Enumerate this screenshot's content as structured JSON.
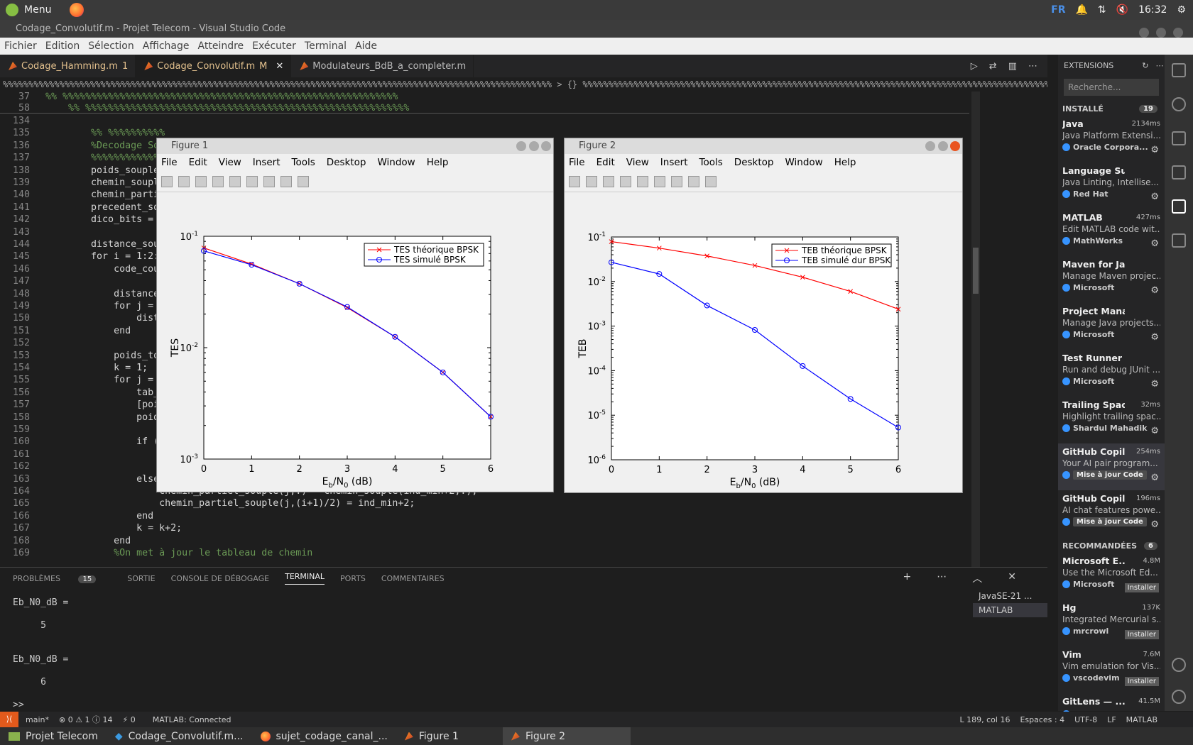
{
  "os": {
    "menu_label": "Menu",
    "kbd_layout": "FR",
    "clock": "16:32"
  },
  "window": {
    "title": "Codage_Convolutif.m - Projet Telecom - Visual Studio Code"
  },
  "menubar": [
    "Fichier",
    "Edition",
    "Sélection",
    "Affichage",
    "Atteindre",
    "Exécuter",
    "Terminal",
    "Aide"
  ],
  "tabs": [
    {
      "label": "Codage_Hamming.m",
      "badge": "1"
    },
    {
      "label": "Codage_Convolutif.m",
      "badge": "M"
    },
    {
      "label": "Modulateurs_BdB_a_completer.m",
      "badge": ""
    }
  ],
  "breadcrumb": "%%%%%%%%%%%%%%%%%%%%%%%%%%%%%%%%%%%%%%%%%%%%%%%%%%%%%%%%%%%%%%%%%%%%%%%%%%%%%%%%%%%%%%%%%%%%%%%%%%%%%%%%%%% > {} %%%%%%%%%%%%%%%%%%%%%%%%%%%%%%%%%%%%%%%%%%%%%%%%%%%%%%%%%%%%%%%%%%%%%%%%%%%%%%%%%%%%%%%%%%%%%%%%%%%%%",
  "sticky_lines": [
    {
      "n": "37",
      "code": "%% %%%%%%%%%%%%%%%%%%%%%%%%%%%%%%%%%%%%%%%%%%%%%%%%%%%%%%%%%%%"
    },
    {
      "n": "58",
      "code": "    %% %%%%%%%%%%%%%%%%%%%%%%%%%%%%%%%%%%%%%%%%%%%%%%%%%%%%%%%%%"
    }
  ],
  "code_lines": [
    {
      "n": "134",
      "code": ""
    },
    {
      "n": "135",
      "code": "        %% %%%%%%%%%%"
    },
    {
      "n": "136",
      "code": "        %Decodage So"
    },
    {
      "n": "137",
      "code": "        %%%%%%%%%%%%"
    },
    {
      "n": "138",
      "code": "        poids_souple"
    },
    {
      "n": "139",
      "code": "        chemin_soupl"
    },
    {
      "n": "140",
      "code": "        chemin_parti"
    },
    {
      "n": "141",
      "code": "        precedent_so"
    },
    {
      "n": "142",
      "code": "        dico_bits ="
    },
    {
      "n": "143",
      "code": ""
    },
    {
      "n": "144",
      "code": "        distance_sou"
    },
    {
      "n": "145",
      "code": "        for i = 1:2:"
    },
    {
      "n": "146",
      "code": "            code_cou"
    },
    {
      "n": "147",
      "code": ""
    },
    {
      "n": "148",
      "code": "            distance"
    },
    {
      "n": "149",
      "code": "            for j ="
    },
    {
      "n": "150",
      "code": "                dist"
    },
    {
      "n": "151",
      "code": "            end"
    },
    {
      "n": "152",
      "code": ""
    },
    {
      "n": "153",
      "code": "            poids_to"
    },
    {
      "n": "154",
      "code": "            k = 1;"
    },
    {
      "n": "155",
      "code": "            for j ="
    },
    {
      "n": "156",
      "code": "                tab_"
    },
    {
      "n": "157",
      "code": "                [poi"
    },
    {
      "n": "158",
      "code": "                poid"
    },
    {
      "n": "159",
      "code": ""
    },
    {
      "n": "160",
      "code": "                if ("
    },
    {
      "n": "161",
      "code": ""
    },
    {
      "n": "162",
      "code": ""
    },
    {
      "n": "163",
      "code": "                else"
    },
    {
      "n": "164",
      "code": "                    chemin_partiel_souple(j,:) = chemin_souple(ind_min+2,:);"
    },
    {
      "n": "165",
      "code": "                    chemin_partiel_souple(j,(i+1)/2) = ind_min+2;"
    },
    {
      "n": "166",
      "code": "                end"
    },
    {
      "n": "167",
      "code": "                k = k+2;"
    },
    {
      "n": "168",
      "code": "            end"
    },
    {
      "n": "169",
      "code": "            %On met à jour le tableau de chemin"
    }
  ],
  "extensions": {
    "header": "EXTENSIONS",
    "search_placeholder": "Recherche...",
    "installed_label": "INSTALLÉ",
    "installed_count": "19",
    "installed": [
      {
        "name": "Java",
        "desc": "Java Platform Extensi...",
        "publisher": "Oracle Corpora...",
        "meta": "2134ms"
      },
      {
        "name": "Language Support fo...",
        "desc": "Java Linting, Intellise...",
        "publisher": "Red Hat",
        "meta": ""
      },
      {
        "name": "MATLAB",
        "desc": "Edit MATLAB code wit...",
        "publisher": "MathWorks",
        "meta": "427ms"
      },
      {
        "name": "Maven for Java",
        "desc": "Manage Maven projec...",
        "publisher": "Microsoft",
        "meta": ""
      },
      {
        "name": "Project Manager for ...",
        "desc": "Manage Java projects...",
        "publisher": "Microsoft",
        "meta": ""
      },
      {
        "name": "Test Runner for Java",
        "desc": "Run and debug JUnit ...",
        "publisher": "Microsoft",
        "meta": ""
      },
      {
        "name": "Trailing Spaces",
        "desc": "Highlight trailing spac...",
        "publisher": "Shardul Mahadik",
        "meta": "32ms"
      },
      {
        "name": "GitHub Copilot",
        "desc": "Your AI pair program...",
        "publisher": "Mise à jour Code",
        "meta": "254ms"
      },
      {
        "name": "GitHub Copil...",
        "desc": "AI chat features powe...",
        "publisher": "Mise à jour Code",
        "meta": "196ms"
      }
    ],
    "recommended_label": "RECOMMANDÉES",
    "recommended_count": "6",
    "recommended": [
      {
        "name": "Microsoft E...",
        "desc": "Use the Microsoft Ed...",
        "publisher": "Microsoft",
        "meta": "4.8M",
        "btn": "Installer"
      },
      {
        "name": "Hg",
        "desc": "Integrated Mercurial s...",
        "publisher": "mrcrowl",
        "meta": "137K",
        "btn": "Installer"
      },
      {
        "name": "Vim",
        "desc": "Vim emulation for Vis...",
        "publisher": "vscodevim",
        "meta": "7.6M",
        "btn": "Installer"
      },
      {
        "name": "GitLens — ...",
        "desc": "",
        "publisher": "",
        "meta": "41.5M",
        "btn": ""
      }
    ]
  },
  "panel": {
    "tabs": [
      "PROBLÈMES",
      "SORTIE",
      "CONSOLE DE DÉBOGAGE",
      "TERMINAL",
      "PORTS",
      "COMMENTAIRES"
    ],
    "problems_count": "15",
    "terminal_text": "Eb_N0_dB =\n\n     5\n\n\nEb_N0_dB =\n\n     6\n\n>> ",
    "terminals": [
      "JavaSE-21 ...",
      "MATLAB"
    ]
  },
  "statusbar": {
    "branch": "main*",
    "problems": "⊗ 0 ⚠ 1 ⓘ 14",
    "ports": "⚡ 0",
    "matlab": "MATLAB: Connected",
    "position": "L 189, col 16",
    "spaces": "Espaces : 4",
    "encoding": "UTF-8",
    "eol": "LF",
    "lang": "MATLAB"
  },
  "taskbar": [
    "Projet Telecom",
    "Codage_Convolutif.m...",
    "sujet_codage_canal_...",
    "Figure 1",
    "Figure 2"
  ],
  "figures": [
    {
      "title": "Figure 1",
      "menu": [
        "File",
        "Edit",
        "View",
        "Insert",
        "Tools",
        "Desktop",
        "Window",
        "Help"
      ]
    },
    {
      "title": "Figure 2",
      "menu": [
        "File",
        "Edit",
        "View",
        "Insert",
        "Tools",
        "Desktop",
        "Window",
        "Help"
      ]
    }
  ],
  "chart_data": [
    {
      "type": "line",
      "yscale": "log",
      "xlabel": "Eb/N0 (dB)",
      "ylabel": "TES",
      "xlim": [
        0,
        6
      ],
      "ylim_exp": [
        -3,
        -1
      ],
      "x": [
        0,
        1,
        2,
        3,
        4,
        5,
        6
      ],
      "series": [
        {
          "name": "TES théorique BPSK",
          "color": "#ff0000",
          "marker": "x",
          "values": [
            0.0786,
            0.0563,
            0.0375,
            0.0229,
            0.0125,
            0.006,
            0.0024
          ]
        },
        {
          "name": "TES simulé BPSK",
          "color": "#0000ff",
          "marker": "o",
          "values": [
            0.074,
            0.0555,
            0.0375,
            0.0232,
            0.0125,
            0.006,
            0.0024
          ]
        }
      ],
      "legend": "top-right"
    },
    {
      "type": "line",
      "yscale": "log",
      "xlabel": "Eb/N0 (dB)",
      "ylabel": "TEB",
      "xlim": [
        0,
        6
      ],
      "ylim_exp": [
        -6,
        -1
      ],
      "x": [
        0,
        1,
        2,
        3,
        4,
        5,
        6
      ],
      "series": [
        {
          "name": "TEB théorique BPSK",
          "color": "#ff0000",
          "marker": "x",
          "values": [
            0.0786,
            0.0563,
            0.0375,
            0.0229,
            0.0125,
            0.006,
            0.0024
          ]
        },
        {
          "name": "TEB simulé dur BPSK",
          "color": "#0000ff",
          "marker": "o",
          "values": [
            0.027,
            0.0148,
            0.0029,
            0.00082,
            0.000127,
            2.32e-05,
            5.3e-06
          ]
        }
      ],
      "legend": "top-right"
    }
  ]
}
